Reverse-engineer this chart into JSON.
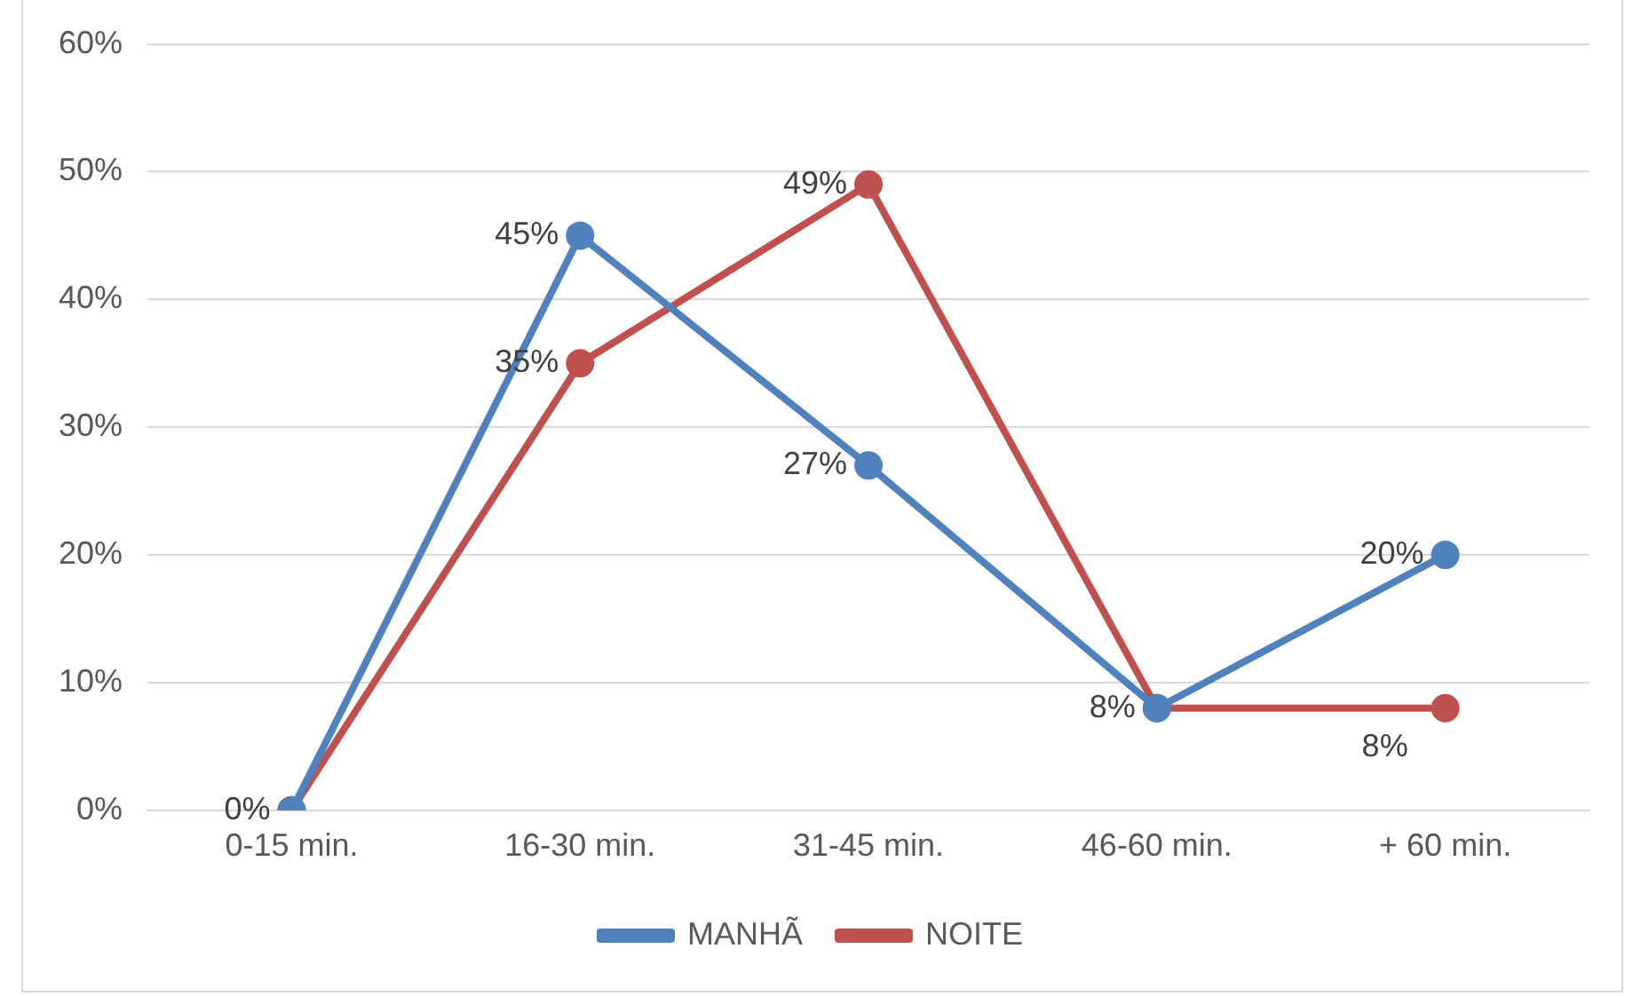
{
  "chart_data": {
    "type": "line",
    "categories": [
      "0-15 min.",
      "16-30 min.",
      "31-45 min.",
      "46-60 min.",
      "+ 60 min."
    ],
    "series": [
      {
        "name": "MANHÃ",
        "color": "#4f81bd",
        "values": [
          0,
          45,
          27,
          8,
          20
        ],
        "value_labels": [
          "0%",
          "45%",
          "27%",
          null,
          "20%"
        ]
      },
      {
        "name": "NOITE",
        "color": "#c0504d",
        "values": [
          0,
          35,
          49,
          8,
          8
        ],
        "value_labels": [
          null,
          "35%",
          "49%",
          "8%",
          "8%"
        ]
      }
    ],
    "ylim": [
      0,
      60
    ],
    "yticks": [
      {
        "value": 0,
        "label": "0%"
      },
      {
        "value": 10,
        "label": "10%"
      },
      {
        "value": 20,
        "label": "20%"
      },
      {
        "value": 30,
        "label": "30%"
      },
      {
        "value": 40,
        "label": "40%"
      },
      {
        "value": 50,
        "label": "50%"
      },
      {
        "value": 60,
        "label": "60%"
      }
    ],
    "grid": "y",
    "legend": "bottom",
    "marker": "circle",
    "line_style": "solid"
  }
}
